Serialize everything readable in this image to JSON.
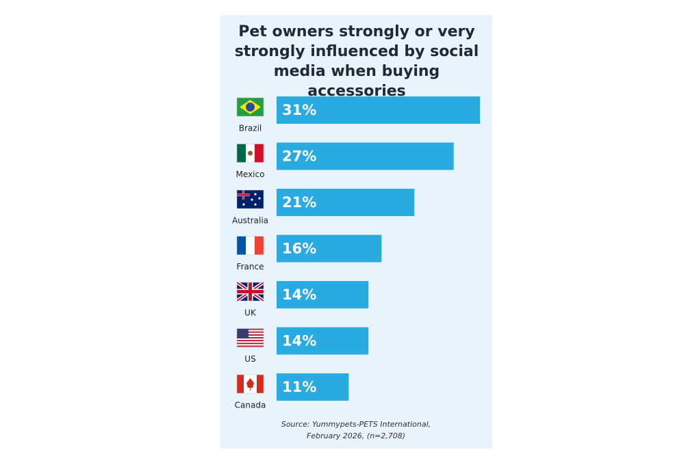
{
  "chart_data": {
    "type": "bar",
    "orientation": "horizontal",
    "title": "Pet owners strongly or very strongly influenced by social media when buying accessories",
    "categories": [
      "Brazil",
      "Mexico",
      "Australia",
      "France",
      "UK",
      "US",
      "Canada"
    ],
    "values": [
      31,
      27,
      21,
      16,
      14,
      14,
      11
    ],
    "value_labels": [
      "31%",
      "27%",
      "21%",
      "16%",
      "14%",
      "14%",
      "11%"
    ],
    "color": "#29aae1",
    "source": "Source: Yummypets-PETS International, February 2026, (n=2,708)"
  }
}
